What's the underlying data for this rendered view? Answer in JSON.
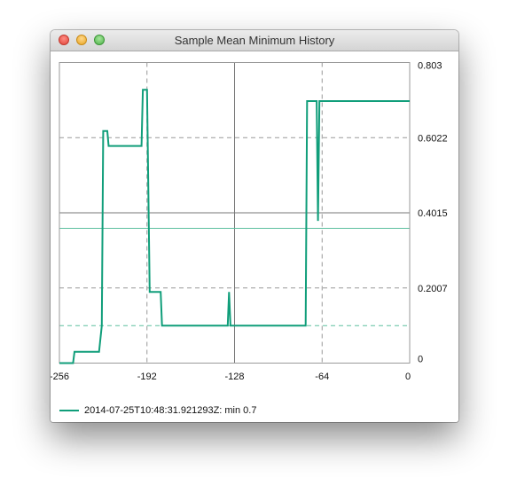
{
  "window": {
    "title": "Sample Mean Minimum History"
  },
  "colors": {
    "series": "#109e7a",
    "frame": "#9a9a9a",
    "grid": "#999999",
    "axis_line": "#777777",
    "mean_line": "#5dbf9f"
  },
  "legend": {
    "label": "2014-07-25T10:48:31.921293Z: min 0.7"
  },
  "chart_data": {
    "type": "line",
    "x_ticks": [
      "-256",
      "-192",
      "-128",
      "-64",
      "0"
    ],
    "y_ticks": [
      "0",
      "0.2007",
      "0.4015",
      "0.6022",
      "0.803"
    ],
    "xlim": [
      -256,
      0
    ],
    "ylim": [
      0,
      0.803
    ],
    "grid": true,
    "legend_placement": "bottom-left",
    "reference_lines": {
      "axis_x": -128,
      "axis_y": 0.4015,
      "mean": 0.36,
      "dashed_series_level": 0.1
    },
    "series": [
      {
        "name": "2014-07-25T10:48:31.921293Z: min 0.7",
        "points": [
          [
            -256,
            0
          ],
          [
            -246,
            0
          ],
          [
            -245,
            0.03
          ],
          [
            -238,
            0.03
          ],
          [
            -227,
            0.03
          ],
          [
            -225,
            0.1
          ],
          [
            -224,
            0.62
          ],
          [
            -221,
            0.62
          ],
          [
            -220,
            0.58
          ],
          [
            -196,
            0.58
          ],
          [
            -195,
            0.73
          ],
          [
            -192,
            0.73
          ],
          [
            -190,
            0.19
          ],
          [
            -182,
            0.19
          ],
          [
            -181,
            0.1
          ],
          [
            -133,
            0.1
          ],
          [
            -132,
            0.19
          ],
          [
            -131,
            0.1
          ],
          [
            -76,
            0.1
          ],
          [
            -75,
            0.7
          ],
          [
            -68,
            0.7
          ],
          [
            -67,
            0.38
          ],
          [
            -66,
            0.7
          ],
          [
            -62,
            0.7
          ],
          [
            0,
            0.7
          ]
        ]
      }
    ]
  }
}
